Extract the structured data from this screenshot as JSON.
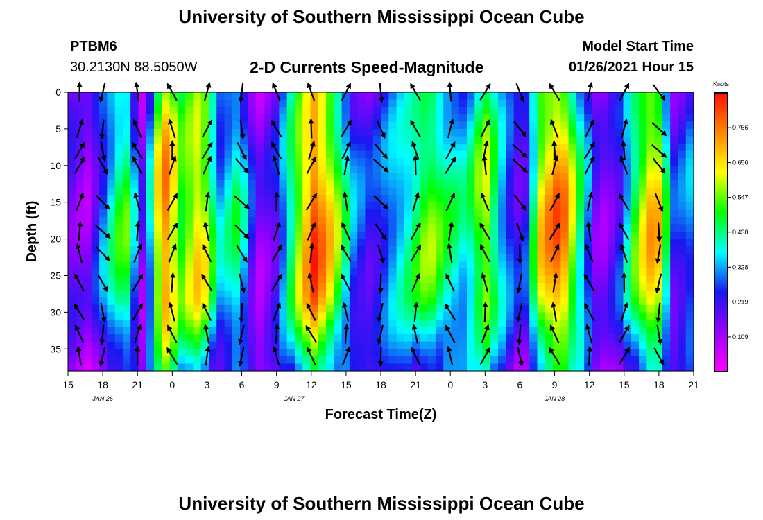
{
  "header": {
    "title_top": "University of Southern Mississippi Ocean Cube",
    "station_id": "PTBM6",
    "station_coords": "30.2130N 88.5050W",
    "plot_title": "2-D Currents Speed-Magnitude",
    "model_start_label": "Model Start Time",
    "model_start_value": "01/26/2021 Hour 15",
    "title_bottom": "University of Southern Mississippi Ocean Cube"
  },
  "chart_data": {
    "type": "heatmap",
    "title": "2-D Currents Speed-Magnitude",
    "xlabel": "Forecast Time(Z)",
    "ylabel": "Depth (ft)",
    "x_tick_labels": [
      "15",
      "18",
      "21",
      "0",
      "3",
      "6",
      "9",
      "12",
      "15",
      "18",
      "21",
      "0",
      "3",
      "6",
      "9",
      "12",
      "15",
      "18",
      "21"
    ],
    "x_hours_from_start": [
      0,
      3,
      6,
      9,
      12,
      15,
      18,
      21,
      24,
      27,
      30,
      33,
      36,
      39,
      42,
      45,
      48,
      51,
      54
    ],
    "date_labels": [
      {
        "text": "JAN 26",
        "hour": 3
      },
      {
        "text": "JAN 27",
        "hour": 19.5
      },
      {
        "text": "JAN 28",
        "hour": 42
      }
    ],
    "y_tick_labels": [
      "0",
      "5",
      "10",
      "15",
      "20",
      "25",
      "30",
      "35"
    ],
    "y_ticks": [
      0,
      5,
      10,
      15,
      20,
      25,
      30,
      35
    ],
    "ylim": [
      38,
      0
    ],
    "xlim": [
      0,
      54
    ],
    "colorbar": {
      "title": "Knots",
      "range": [
        0,
        0.875
      ],
      "tick_labels": [
        "0.766",
        "0.656",
        "0.547",
        "0.438",
        "0.328",
        "0.219",
        "0.109"
      ],
      "tick_values": [
        0.766,
        0.656,
        0.547,
        0.438,
        0.328,
        0.219,
        0.109
      ],
      "colors": [
        "#ff00ff",
        "#9900ff",
        "#1818f0",
        "#00ffff",
        "#00ff00",
        "#ffff00",
        "#ff8800",
        "#ff1100"
      ]
    },
    "speed_columns_knots": [
      0.18,
      0.12,
      0.3,
      0.48,
      0.12,
      0.72,
      0.48,
      0.62,
      0.3,
      0.4,
      0.12,
      0.2,
      0.48,
      0.74,
      0.55,
      0.28,
      0.2,
      0.3,
      0.38,
      0.5,
      0.4,
      0.34,
      0.55,
      0.3,
      0.16,
      0.6,
      0.72,
      0.4,
      0.12,
      0.2,
      0.48,
      0.66,
      0.2,
      0.3
    ],
    "vector_depths_ft": [
      0,
      5,
      8,
      10,
      15,
      19,
      22,
      26,
      30,
      33,
      36
    ],
    "vector_times_hours": [
      1,
      3,
      6,
      9,
      12,
      15,
      18,
      21,
      24,
      27,
      30,
      33,
      36,
      39,
      42,
      45,
      48,
      51,
      54
    ]
  },
  "colors": {
    "background": "#ffffff",
    "arrow": "#000000"
  }
}
